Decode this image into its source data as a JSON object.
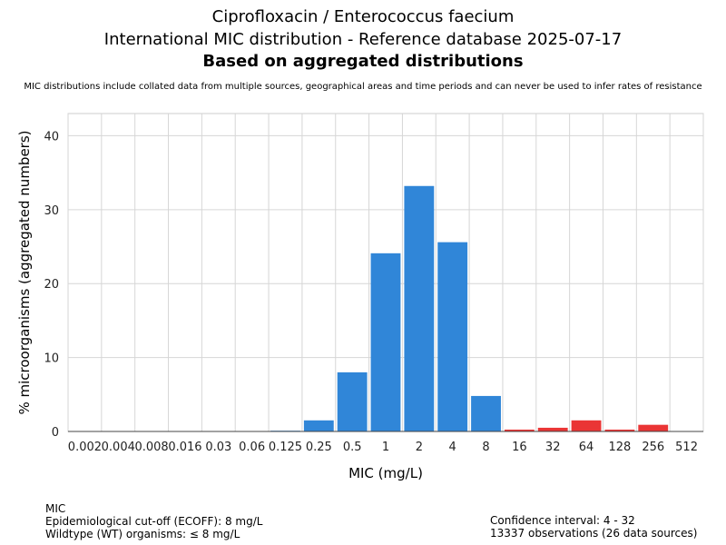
{
  "chart_data": {
    "type": "bar",
    "title": "Ciprofloxacin / Enterococcus faecium",
    "subtitle": "International MIC distribution - Reference database 2025-07-17",
    "subtitle2": "Based on aggregated distributions",
    "note": "MIC distributions include collated data from multiple sources, geographical areas and time periods and can never be used to infer rates of resistance",
    "xlabel": "MIC (mg/L)",
    "ylabel": "% microorganisms (aggregated numbers)",
    "ylim": [
      0,
      43
    ],
    "yticks": [
      0,
      10,
      20,
      30,
      40
    ],
    "categories": [
      "0.002",
      "0.004",
      "0.008",
      "0.016",
      "0.03",
      "0.06",
      "0.125",
      "0.25",
      "0.5",
      "1",
      "2",
      "4",
      "8",
      "16",
      "32",
      "64",
      "128",
      "256",
      "512"
    ],
    "values": [
      0,
      0,
      0,
      0,
      0,
      0,
      0.1,
      1.5,
      8.0,
      24.1,
      33.2,
      25.6,
      4.8,
      0.25,
      0.5,
      1.5,
      0.25,
      0.9,
      0
    ],
    "ecoff": 8,
    "colors": {
      "wildtype": "#3086d8",
      "non_wildtype": "#ea3535"
    },
    "grid": true
  },
  "footer": {
    "left": [
      "MIC",
      "Epidemiological cut-off (ECOFF): 8 mg/L",
      "Wildtype (WT) organisms: ≤ 8 mg/L"
    ],
    "right": [
      "Confidence interval: 4 - 32",
      "13337 observations (26 data sources)"
    ]
  }
}
